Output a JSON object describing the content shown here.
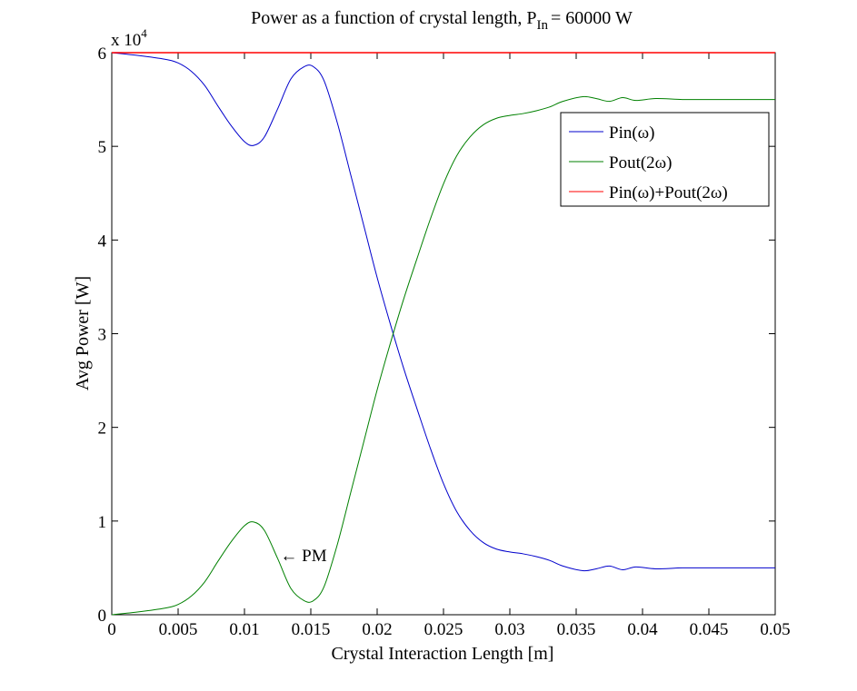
{
  "chart_data": {
    "type": "line",
    "title": "Power as a function of crystal length, P",
    "title_subscript": "In",
    "title_suffix": "= 60000 W",
    "xlabel": "Crystal Interaction Length [m]",
    "ylabel": "Avg Power [W]",
    "xlim": [
      0,
      0.05
    ],
    "ylim": [
      0,
      60000
    ],
    "y_multiplier": "x 10",
    "y_multiplier_exponent": "4",
    "xticks": [
      0,
      0.005,
      0.01,
      0.015,
      0.02,
      0.025,
      0.03,
      0.035,
      0.04,
      0.045,
      0.05
    ],
    "xtick_labels": [
      "0",
      "0.005",
      "0.01",
      "0.015",
      "0.02",
      "0.025",
      "0.03",
      "0.035",
      "0.04",
      "0.045",
      "0.05"
    ],
    "yticks": [
      0,
      10000,
      20000,
      30000,
      40000,
      50000,
      60000
    ],
    "ytick_labels": [
      "0",
      "1",
      "2",
      "3",
      "4",
      "5",
      "6"
    ],
    "grid": false,
    "legend_position": "top-right",
    "annotation": {
      "text": "← PM",
      "x": 0.0127,
      "y": 6300
    },
    "series": [
      {
        "name": "Pin(ω)",
        "color": "#0000cc",
        "x": [
          0,
          0.002,
          0.004,
          0.005,
          0.006,
          0.007,
          0.008,
          0.009,
          0.01,
          0.0107,
          0.0115,
          0.0125,
          0.0135,
          0.0145,
          0.0152,
          0.016,
          0.017,
          0.018,
          0.019,
          0.02,
          0.021,
          0.022,
          0.023,
          0.024,
          0.025,
          0.026,
          0.027,
          0.028,
          0.029,
          0.03,
          0.031,
          0.032,
          0.033,
          0.034,
          0.0355,
          0.0365,
          0.0375,
          0.0385,
          0.0395,
          0.041,
          0.043,
          0.045,
          0.047,
          0.05
        ],
        "y": [
          60000,
          59700,
          59300,
          58900,
          58000,
          56500,
          54300,
          52200,
          50500,
          50100,
          51000,
          54000,
          57200,
          58500,
          58500,
          57000,
          52500,
          47000,
          41500,
          36000,
          31000,
          26300,
          22000,
          17800,
          14000,
          11000,
          9000,
          7700,
          7000,
          6700,
          6500,
          6200,
          5800,
          5200,
          4700,
          4900,
          5200,
          4800,
          5100,
          4900,
          5000,
          5000,
          5000,
          5000
        ]
      },
      {
        "name": "Pout(2ω)",
        "color": "#008000",
        "x": [
          0,
          0.002,
          0.004,
          0.005,
          0.006,
          0.007,
          0.008,
          0.009,
          0.01,
          0.0107,
          0.0115,
          0.0125,
          0.0135,
          0.0145,
          0.0152,
          0.016,
          0.017,
          0.018,
          0.019,
          0.02,
          0.021,
          0.022,
          0.023,
          0.024,
          0.025,
          0.026,
          0.027,
          0.028,
          0.029,
          0.03,
          0.031,
          0.032,
          0.033,
          0.034,
          0.0355,
          0.0365,
          0.0375,
          0.0385,
          0.0395,
          0.041,
          0.043,
          0.045,
          0.047,
          0.05
        ],
        "y": [
          0,
          300,
          700,
          1100,
          2000,
          3500,
          5700,
          7800,
          9500,
          9900,
          9000,
          6000,
          2800,
          1500,
          1500,
          3000,
          7500,
          13000,
          18500,
          24000,
          29000,
          33700,
          38000,
          42200,
          46000,
          49000,
          51000,
          52300,
          53000,
          53300,
          53500,
          53800,
          54200,
          54800,
          55300,
          55100,
          54800,
          55200,
          54900,
          55100,
          55000,
          55000,
          55000,
          55000
        ]
      },
      {
        "name": "Pin(ω)+Pout(2ω)",
        "color": "#ff0000",
        "x": [
          0,
          0.05
        ],
        "y": [
          60000,
          60000
        ]
      }
    ]
  }
}
